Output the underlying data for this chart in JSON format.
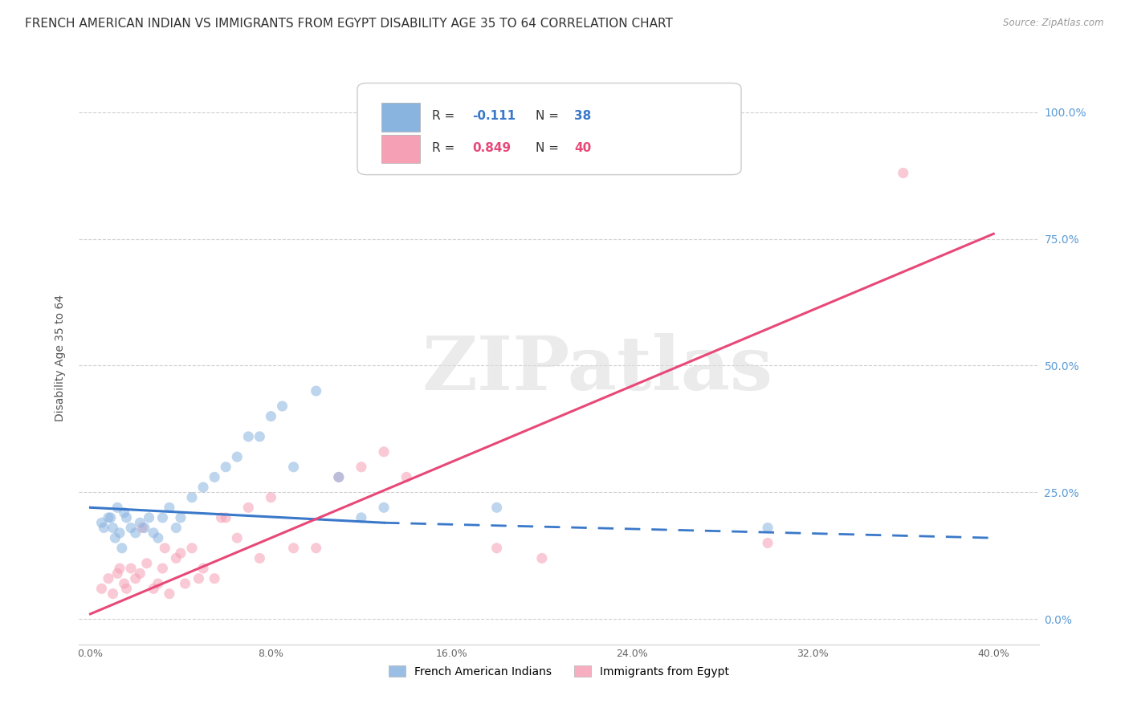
{
  "title": "FRENCH AMERICAN INDIAN VS IMMIGRANTS FROM EGYPT DISABILITY AGE 35 TO 64 CORRELATION CHART",
  "source": "Source: ZipAtlas.com",
  "ylabel": "Disability Age 35 to 64",
  "ytick_values": [
    0,
    25,
    50,
    75,
    100
  ],
  "xtick_values": [
    0,
    8,
    16,
    24,
    32,
    40
  ],
  "xlim": [
    -0.5,
    42
  ],
  "ylim": [
    -5,
    108
  ],
  "watermark_text": "ZIPatlas",
  "legend_label1": "French American Indians",
  "legend_label2": "Immigrants from Egypt",
  "blue_scatter_x": [
    0.5,
    0.8,
    1.0,
    1.2,
    1.3,
    1.5,
    1.6,
    1.8,
    2.0,
    2.2,
    2.4,
    2.6,
    2.8,
    3.0,
    3.2,
    3.5,
    3.8,
    4.0,
    4.5,
    5.0,
    5.5,
    6.0,
    6.5,
    7.0,
    7.5,
    8.0,
    8.5,
    9.0,
    10.0,
    11.0,
    12.0,
    13.0,
    18.0,
    30.0,
    0.6,
    0.9,
    1.1,
    1.4
  ],
  "blue_scatter_y": [
    19,
    20,
    18,
    22,
    17,
    21,
    20,
    18,
    17,
    19,
    18,
    20,
    17,
    16,
    20,
    22,
    18,
    20,
    24,
    26,
    28,
    30,
    32,
    36,
    36,
    40,
    42,
    30,
    45,
    28,
    20,
    22,
    22,
    18,
    18,
    20,
    16,
    14
  ],
  "pink_scatter_x": [
    0.5,
    0.8,
    1.0,
    1.2,
    1.5,
    1.8,
    2.0,
    2.2,
    2.5,
    2.8,
    3.0,
    3.2,
    3.5,
    3.8,
    4.0,
    4.2,
    4.5,
    5.0,
    5.5,
    6.0,
    6.5,
    7.0,
    8.0,
    9.0,
    10.0,
    11.0,
    12.0,
    13.0,
    14.0,
    18.0,
    20.0,
    30.0,
    36.0,
    1.3,
    1.6,
    2.3,
    3.3,
    4.8,
    5.8,
    7.5
  ],
  "pink_scatter_y": [
    6,
    8,
    5,
    9,
    7,
    10,
    8,
    9,
    11,
    6,
    7,
    10,
    5,
    12,
    13,
    7,
    14,
    10,
    8,
    20,
    16,
    22,
    24,
    14,
    14,
    28,
    30,
    33,
    28,
    14,
    12,
    15,
    88,
    10,
    6,
    18,
    14,
    8,
    20,
    12
  ],
  "blue_line_x0": 0,
  "blue_line_x1": 13,
  "blue_line_y0": 22,
  "blue_line_y1": 19,
  "blue_dash_x0": 13,
  "blue_dash_x1": 40,
  "blue_dash_y0": 19,
  "blue_dash_y1": 16,
  "pink_line_x0": 0,
  "pink_line_x1": 40,
  "pink_line_y0": 1,
  "pink_line_y1": 76,
  "blue_color": "#8ab4e0",
  "pink_color": "#f5a0b5",
  "blue_line_color": "#3a78c9",
  "pink_line_color": "#e84878",
  "blue_text_color": "#3a78c9",
  "pink_text_color": "#e84878",
  "background_color": "#ffffff",
  "grid_color": "#d0d0d0",
  "title_fontsize": 11,
  "axis_label_fontsize": 10,
  "tick_fontsize": 9,
  "marker_size": 90,
  "marker_alpha": 0.55,
  "right_tick_color": "#5b9bd5",
  "watermark_color": "#dedede",
  "watermark_alpha": 0.6
}
